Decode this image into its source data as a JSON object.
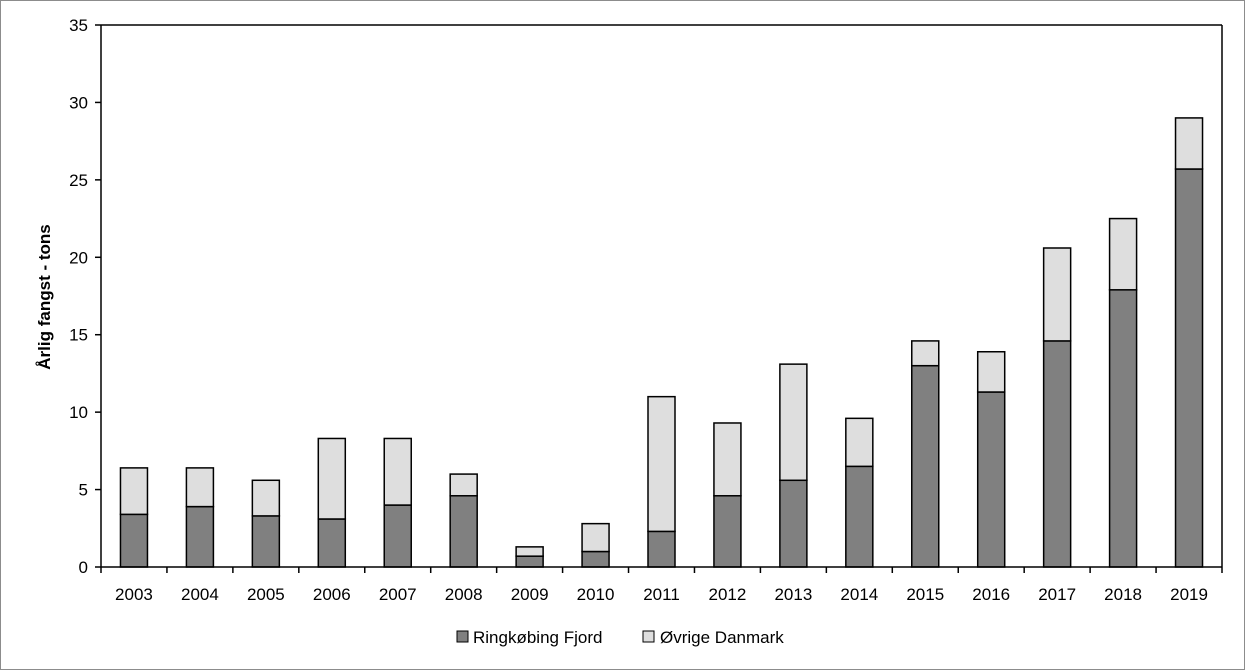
{
  "chart_data": {
    "type": "bar",
    "stacked": true,
    "title": "",
    "xlabel": "",
    "ylabel": "Årlig fangst - tons",
    "ylim": [
      0,
      35
    ],
    "yticks": [
      0,
      5,
      10,
      15,
      20,
      25,
      30,
      35
    ],
    "grid": false,
    "legend_position": "bottom",
    "categories": [
      "2003",
      "2004",
      "2005",
      "2006",
      "2007",
      "2008",
      "2009",
      "2010",
      "2011",
      "2012",
      "2013",
      "2014",
      "2015",
      "2016",
      "2017",
      "2018",
      "2019"
    ],
    "series": [
      {
        "name": "Ringkøbing Fjord",
        "color": "#808080",
        "values": [
          3.4,
          3.9,
          3.3,
          3.1,
          4.0,
          4.6,
          0.7,
          1.0,
          2.3,
          4.6,
          5.6,
          6.5,
          13.0,
          11.3,
          14.6,
          17.9,
          25.7
        ]
      },
      {
        "name": "Øvrige Danmark",
        "color": "#dedede",
        "values": [
          3.0,
          2.5,
          2.3,
          5.2,
          4.3,
          1.4,
          0.6,
          1.8,
          8.7,
          4.7,
          7.5,
          3.1,
          1.6,
          2.6,
          6.0,
          4.6,
          3.3
        ]
      }
    ]
  }
}
